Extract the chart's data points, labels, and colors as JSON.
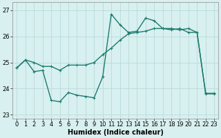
{
  "line1_x": [
    0,
    1,
    2,
    3,
    4,
    5,
    6,
    7,
    8,
    9,
    10,
    11,
    12,
    13,
    14,
    15,
    16,
    17,
    18,
    19,
    20,
    21,
    22,
    23
  ],
  "line1_y": [
    24.8,
    25.1,
    25.0,
    24.85,
    24.85,
    24.7,
    24.9,
    24.9,
    24.9,
    25.0,
    25.3,
    25.55,
    25.85,
    26.1,
    26.15,
    26.2,
    26.3,
    26.3,
    26.3,
    26.25,
    26.3,
    26.15,
    23.8,
    23.8
  ],
  "line2_x": [
    0,
    1,
    2,
    3,
    4,
    5,
    6,
    7,
    8,
    9,
    10,
    11,
    12,
    13,
    14,
    15,
    16,
    17,
    18,
    19,
    20,
    21,
    22,
    23
  ],
  "line2_y": [
    24.8,
    25.1,
    24.65,
    24.7,
    23.55,
    23.5,
    23.85,
    23.75,
    23.7,
    23.65,
    24.45,
    26.85,
    26.45,
    26.15,
    26.2,
    26.7,
    26.6,
    26.3,
    26.25,
    26.3,
    26.15,
    26.15,
    23.82,
    23.82
  ],
  "bg_color": "#d8f0ef",
  "grid_color": "#b8dada",
  "line_color": "#1a7a6e",
  "marker": "+",
  "markersize": 3,
  "linewidth": 1.0,
  "xlabel": "Humidex (Indice chaleur)",
  "xlabel_fontsize": 7,
  "yticks": [
    23,
    24,
    25,
    26,
    27
  ],
  "xticks": [
    0,
    1,
    2,
    3,
    4,
    5,
    6,
    7,
    8,
    9,
    10,
    11,
    12,
    13,
    14,
    15,
    16,
    17,
    18,
    19,
    20,
    21,
    22,
    23
  ],
  "ylim": [
    22.85,
    27.3
  ],
  "xlim": [
    -0.5,
    23.5
  ],
  "tick_fontsize": 6
}
